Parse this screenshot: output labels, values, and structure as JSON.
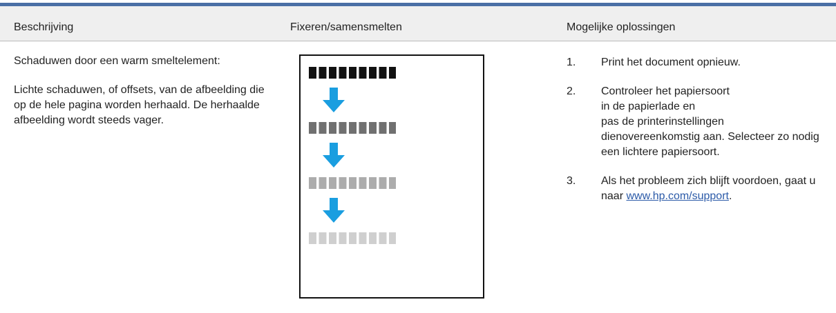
{
  "table": {
    "header": [
      "Beschrijving",
      "Fixeren/samensmelten",
      "Mogelijke oplossingen"
    ],
    "rows": [
      {
        "title": "Schaduwen door een warm smeltelement:",
        "description": "Lichte schaduwen, of offsets, van de afbeelding die op de hele pagina worden herhaald. De herhaalde afbeelding wordt steeds vager.",
        "steps": [
          {
            "number": "1.",
            "lines": [
              "Print het document opnieuw."
            ]
          },
          {
            "number": "2.",
            "lines": [
              "Controleer het papiersoort",
              "in de papierlade en",
              "pas de printerinstellingen",
              "dienovereenkomstig aan. Selecteer zo nodig een lichtere papiersoort."
            ]
          },
          {
            "number": "3.",
            "lines": [
              "Als het probleem zich blijft voordoen, gaat u naar "
            ],
            "link": "www.hp.com/support",
            "suffix": "."
          }
        ]
      }
    ]
  }
}
